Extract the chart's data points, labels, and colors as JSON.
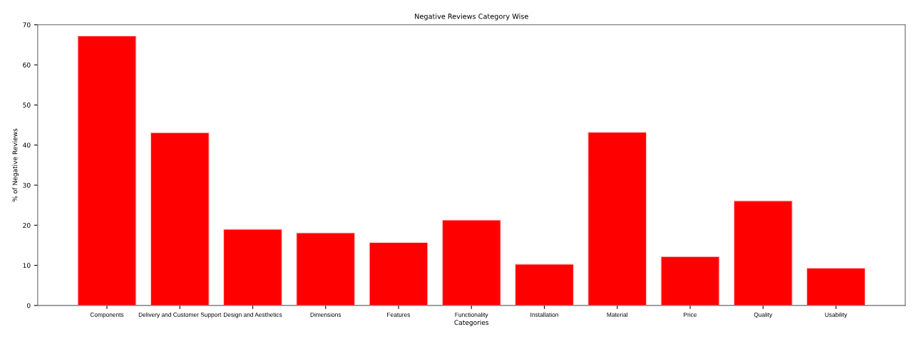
{
  "chart_data": {
    "type": "bar",
    "title": "Negative Reviews Category Wise",
    "xlabel": "Categories",
    "ylabel": "% of Negative Reviews",
    "categories": [
      "Components",
      "Delivery and Customer Support",
      "Design and Aesthetics",
      "Dimensions",
      "Features",
      "Functionality",
      "Installation",
      "Material",
      "Price",
      "Quality",
      "Usability"
    ],
    "values": [
      67.2,
      43.1,
      19.0,
      18.1,
      15.7,
      21.3,
      10.3,
      43.2,
      12.2,
      26.1,
      9.3
    ],
    "color": "#ff0000",
    "ylim": [
      0,
      70
    ],
    "yticks": [
      0,
      10,
      20,
      30,
      40,
      50,
      60,
      70
    ],
    "grid": false,
    "legend": false
  }
}
